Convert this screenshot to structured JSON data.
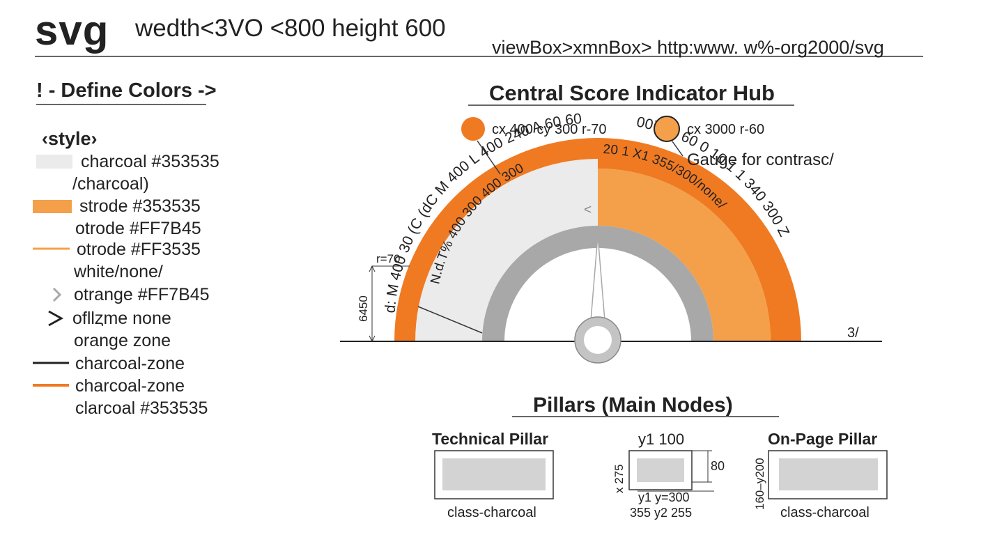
{
  "header": {
    "title": "svg",
    "size_text": "wedth<3VO <800  height 600",
    "viewbox_text": "viewBox>xmnBox> http:www. w%-org2000/svg"
  },
  "colors": {
    "charcoal": "#353535",
    "orange": "#F07A22",
    "light_orange": "#F4A04A",
    "light_gray": "#EBEBEB",
    "mid_gray": "#A8A8A8"
  },
  "legend": {
    "heading": "! - Define Colors ->",
    "style_tag": "‹style›",
    "items": [
      {
        "text": "charcoal #353535",
        "marker": "light-swatch"
      },
      {
        "text": "/charcoal)",
        "marker": "none"
      },
      {
        "text": "strode #353535",
        "marker": "orange-swatch"
      },
      {
        "text": "otrode #FF7B45",
        "marker": "none"
      },
      {
        "text": "otrode #FF3535",
        "marker": "orange-line"
      },
      {
        "text": "white/none/",
        "marker": "none"
      },
      {
        "text": "otrange #FF7B45",
        "marker": "gray-chevron"
      },
      {
        "text": "ofllȥme none",
        "marker": "black-chevron"
      },
      {
        "text": "orange zone",
        "marker": "none"
      },
      {
        "text": "charcoal-zone",
        "marker": "black-line"
      },
      {
        "text": "charcoal-zone",
        "marker": "orange-line"
      },
      {
        "text": "clarcoal #353535",
        "marker": "none"
      }
    ]
  },
  "hub": {
    "title": "Central Score Indicator Hub",
    "circle1_text": "cx 400 cy 300 r-70",
    "circle2_text": "cx 3000 r-60",
    "gauge_note": "Gauge for contrasc/",
    "outer_arc_path_left": "d: M 400 30 (C (dC M 400 L 400 240 A 60 60",
    "outer_arc_path_right": "0077B 60 0 10 1 1 340 300 Z",
    "inner_arc_path_left": "N.d.T% 400 300 400 300",
    "inner_arc_path_right": "20 1 X1 355/300/none/",
    "inner_marker": "<",
    "r_label": "r=70",
    "height_label": "6450",
    "baseline_label": "3/"
  },
  "pillars": {
    "title": "Pillars (Main Nodes)",
    "technical": {
      "label": "Technical Pillar",
      "caption": "class-charcoal"
    },
    "middle": {
      "top_label": "y1  100",
      "side_label": "x 275",
      "height_label": "80",
      "bottom_label1": "y1 y=300",
      "bottom_label2": "355 y2 255"
    },
    "onpage": {
      "label": "On-Page Pillar",
      "caption": "class-charcoal",
      "side_label": "160–y200"
    }
  }
}
